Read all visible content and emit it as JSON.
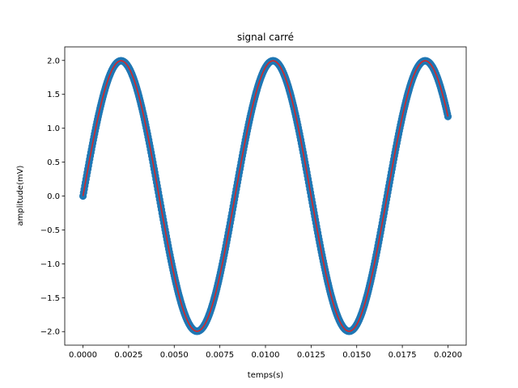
{
  "chart_data": {
    "type": "line",
    "title": "signal carré",
    "xlabel": "temps(s)",
    "ylabel": "amplitude(mV)",
    "xlim": [
      -0.001,
      0.021
    ],
    "ylim": [
      -2.2,
      2.2
    ],
    "x_ticks": [
      0.0,
      0.0025,
      0.005,
      0.0075,
      0.01,
      0.0125,
      0.015,
      0.0175,
      0.02
    ],
    "x_tick_labels": [
      "0.0000",
      "0.0025",
      "0.0050",
      "0.0075",
      "0.0100",
      "0.0125",
      "0.0150",
      "0.0175",
      "0.0200"
    ],
    "y_ticks": [
      -2.0,
      -1.5,
      -1.0,
      -0.5,
      0.0,
      0.5,
      1.0,
      1.5,
      2.0
    ],
    "y_tick_labels": [
      "−2.0",
      "−1.5",
      "−1.0",
      "−0.5",
      "0.0",
      "0.5",
      "1.0",
      "1.5",
      "2.0"
    ],
    "grid": false,
    "colors": {
      "markers": "#1f77b4",
      "line": "#d62728"
    },
    "series": [
      {
        "style": "scatter",
        "x": [
          0.0,
          0.0005,
          0.001,
          0.0015,
          0.002,
          0.0025,
          0.003,
          0.0035,
          0.004,
          0.0045,
          0.005,
          0.0055,
          0.006,
          0.0065,
          0.007,
          0.0075,
          0.008,
          0.0085,
          0.009,
          0.0095,
          0.01,
          0.0105,
          0.011,
          0.0115,
          0.012,
          0.0125,
          0.013,
          0.0135,
          0.014,
          0.0145,
          0.015,
          0.0155,
          0.016,
          0.0165,
          0.017,
          0.0175,
          0.018,
          0.0185,
          0.019,
          0.0195,
          0.02
        ],
        "y": [
          0.0,
          0.73,
          1.36,
          1.81,
          1.99,
          1.89,
          1.52,
          0.95,
          0.25,
          -0.49,
          -1.16,
          -1.69,
          -1.97,
          -1.96,
          -1.67,
          -1.14,
          -0.46,
          0.28,
          0.98,
          1.55,
          1.9,
          1.99,
          1.8,
          1.34,
          0.71,
          -0.03,
          -0.76,
          -1.39,
          -1.83,
          -1.99,
          -1.88,
          -1.5,
          -0.92,
          -0.22,
          0.52,
          1.19,
          1.71,
          1.97,
          1.95,
          1.65,
          1.2
        ]
      },
      {
        "style": "line",
        "x": [
          0.0,
          0.0005,
          0.001,
          0.0015,
          0.002,
          0.0025,
          0.003,
          0.0035,
          0.004,
          0.0045,
          0.005,
          0.0055,
          0.006,
          0.0065,
          0.007,
          0.0075,
          0.008,
          0.0085,
          0.009,
          0.0095,
          0.01,
          0.0105,
          0.011,
          0.0115,
          0.012,
          0.0125,
          0.013,
          0.0135,
          0.014,
          0.0145,
          0.015,
          0.0155,
          0.016,
          0.0165,
          0.017,
          0.0175,
          0.018,
          0.0185,
          0.019,
          0.0195,
          0.02
        ],
        "y": [
          0.0,
          0.73,
          1.36,
          1.81,
          1.99,
          1.89,
          1.52,
          0.95,
          0.25,
          -0.49,
          -1.16,
          -1.69,
          -1.97,
          -1.96,
          -1.67,
          -1.14,
          -0.46,
          0.28,
          0.98,
          1.55,
          1.9,
          1.99,
          1.8,
          1.34,
          0.71,
          -0.03,
          -0.76,
          -1.39,
          -1.83,
          -1.99,
          -1.88,
          -1.5,
          -0.92,
          -0.22,
          0.52,
          1.19,
          1.71,
          1.97,
          1.95,
          1.65,
          1.2
        ]
      }
    ]
  }
}
